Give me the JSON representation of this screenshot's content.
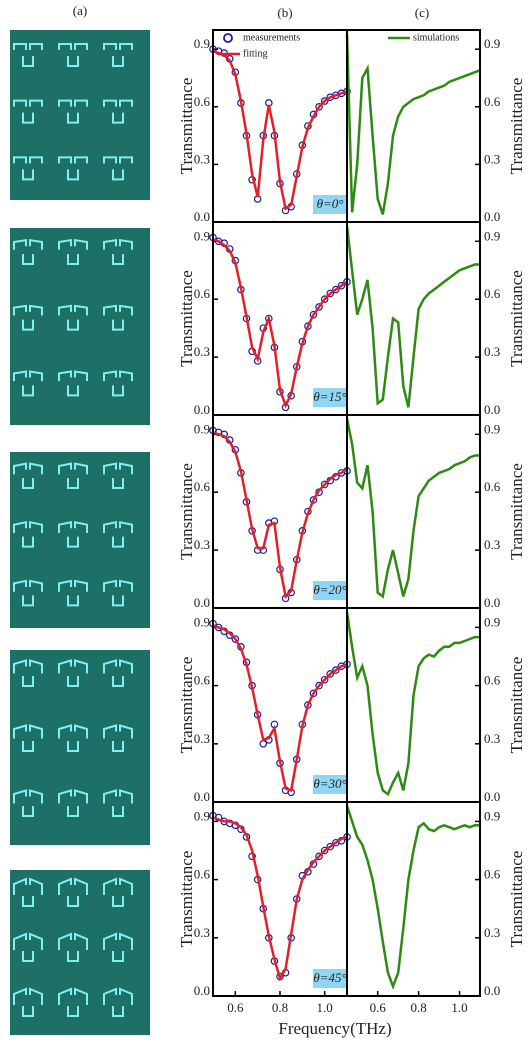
{
  "panel_labels": [
    "(a)",
    "(b)",
    "(c)"
  ],
  "xlabel": "Frequency(THz)",
  "chart_data": [
    {
      "type": "line",
      "ylabel": "Transmittance",
      "annotation": "θ=0°",
      "x": [
        0.5,
        0.525,
        0.55,
        0.575,
        0.6,
        0.625,
        0.65,
        0.675,
        0.7,
        0.725,
        0.75,
        0.775,
        0.8,
        0.825,
        0.85,
        0.875,
        0.9,
        0.925,
        0.95,
        0.975,
        1.0,
        1.025,
        1.05,
        1.075,
        1.1
      ],
      "xlim": [
        0.5,
        1.1
      ],
      "ylim": [
        0,
        1
      ],
      "yticks": [
        {
          "value": 0,
          "label": "0.0"
        },
        0.3,
        0.6,
        0.9
      ],
      "series": [
        {
          "name": "measurements",
          "color": "#1c1c9c",
          "marker": "circle",
          "values": [
            0.9,
            0.89,
            0.88,
            0.85,
            0.78,
            0.62,
            0.45,
            0.22,
            0.12,
            0.45,
            0.62,
            0.45,
            0.2,
            0.06,
            0.08,
            0.25,
            0.4,
            0.5,
            0.56,
            0.6,
            0.63,
            0.65,
            0.66,
            0.67,
            0.68
          ]
        },
        {
          "name": "fitting",
          "color": "#e3202a",
          "values": [
            0.89,
            0.88,
            0.87,
            0.84,
            0.77,
            0.63,
            0.46,
            0.25,
            0.13,
            0.43,
            0.61,
            0.47,
            0.21,
            0.07,
            0.09,
            0.24,
            0.39,
            0.49,
            0.55,
            0.6,
            0.63,
            0.65,
            0.66,
            0.67,
            0.68
          ]
        }
      ]
    },
    {
      "type": "line",
      "ylabel": "Transmittance",
      "x": [
        0.45,
        0.475,
        0.5,
        0.525,
        0.55,
        0.575,
        0.6,
        0.625,
        0.65,
        0.675,
        0.7,
        0.725,
        0.75,
        0.775,
        0.8,
        0.825,
        0.85,
        0.875,
        0.9,
        0.925,
        0.95,
        0.975,
        1.0,
        1.025,
        1.05,
        1.075,
        1.1
      ],
      "xlim": [
        0.45,
        1.1
      ],
      "ylim": [
        0,
        1
      ],
      "yticks": [
        {
          "value": 0,
          "label": "0.0"
        },
        0.3,
        0.6,
        0.9
      ],
      "series": [
        {
          "name": "simulations",
          "color": "#2e8a12",
          "values": [
            0.98,
            0.05,
            0.3,
            0.75,
            0.8,
            0.45,
            0.12,
            0.04,
            0.2,
            0.45,
            0.55,
            0.6,
            0.62,
            0.64,
            0.65,
            0.66,
            0.68,
            0.69,
            0.7,
            0.71,
            0.73,
            0.74,
            0.75,
            0.76,
            0.77,
            0.78,
            0.79
          ]
        }
      ]
    },
    {
      "type": "line",
      "ylabel": "Transmittance",
      "annotation": "θ=15°",
      "x": [
        0.5,
        0.525,
        0.55,
        0.575,
        0.6,
        0.625,
        0.65,
        0.675,
        0.7,
        0.725,
        0.75,
        0.775,
        0.8,
        0.825,
        0.85,
        0.875,
        0.9,
        0.925,
        0.95,
        0.975,
        1.0,
        1.025,
        1.05,
        1.075,
        1.1
      ],
      "xlim": [
        0.5,
        1.1
      ],
      "ylim": [
        0,
        1
      ],
      "yticks": [
        {
          "value": 0,
          "label": "0.0"
        },
        0.3,
        0.6,
        0.9
      ],
      "series": [
        {
          "color": "#1c1c9c",
          "marker": "circle",
          "values": [
            0.92,
            0.9,
            0.89,
            0.86,
            0.8,
            0.65,
            0.5,
            0.33,
            0.28,
            0.45,
            0.5,
            0.35,
            0.12,
            0.04,
            0.1,
            0.25,
            0.38,
            0.46,
            0.52,
            0.56,
            0.6,
            0.63,
            0.65,
            0.67,
            0.69
          ]
        },
        {
          "color": "#e3202a",
          "values": [
            0.91,
            0.9,
            0.88,
            0.85,
            0.79,
            0.66,
            0.51,
            0.35,
            0.29,
            0.43,
            0.5,
            0.36,
            0.13,
            0.05,
            0.11,
            0.25,
            0.37,
            0.46,
            0.52,
            0.56,
            0.6,
            0.63,
            0.65,
            0.67,
            0.69
          ]
        }
      ]
    },
    {
      "type": "line",
      "ylabel": "Transmittance",
      "x": [
        0.45,
        0.475,
        0.5,
        0.525,
        0.55,
        0.575,
        0.6,
        0.625,
        0.65,
        0.675,
        0.7,
        0.725,
        0.75,
        0.775,
        0.8,
        0.825,
        0.85,
        0.875,
        0.9,
        0.925,
        0.95,
        0.975,
        1.0,
        1.025,
        1.05,
        1.075,
        1.1
      ],
      "xlim": [
        0.45,
        1.1
      ],
      "ylim": [
        0,
        1
      ],
      "yticks": [
        {
          "value": 0,
          "label": "0.0"
        },
        0.3,
        0.6,
        0.9
      ],
      "series": [
        {
          "color": "#2e8a12",
          "values": [
            0.98,
            0.75,
            0.52,
            0.6,
            0.7,
            0.45,
            0.06,
            0.08,
            0.3,
            0.5,
            0.48,
            0.15,
            0.04,
            0.3,
            0.55,
            0.6,
            0.63,
            0.65,
            0.67,
            0.69,
            0.71,
            0.73,
            0.75,
            0.76,
            0.77,
            0.78,
            0.78
          ]
        }
      ]
    },
    {
      "type": "line",
      "ylabel": "Transmittance",
      "annotation": "θ=20°",
      "x": [
        0.5,
        0.525,
        0.55,
        0.575,
        0.6,
        0.625,
        0.65,
        0.675,
        0.7,
        0.725,
        0.75,
        0.775,
        0.8,
        0.825,
        0.85,
        0.875,
        0.9,
        0.925,
        0.95,
        0.975,
        1.0,
        1.025,
        1.05,
        1.075,
        1.1
      ],
      "xlim": [
        0.5,
        1.1
      ],
      "ylim": [
        0,
        1
      ],
      "yticks": [
        {
          "value": 0,
          "label": "0.0"
        },
        0.3,
        0.6,
        0.9
      ],
      "series": [
        {
          "color": "#1c1c9c",
          "marker": "circle",
          "values": [
            0.92,
            0.91,
            0.9,
            0.87,
            0.82,
            0.7,
            0.55,
            0.4,
            0.3,
            0.3,
            0.44,
            0.45,
            0.2,
            0.05,
            0.08,
            0.25,
            0.4,
            0.5,
            0.56,
            0.6,
            0.64,
            0.66,
            0.68,
            0.7,
            0.71
          ]
        },
        {
          "color": "#e3202a",
          "values": [
            0.91,
            0.9,
            0.89,
            0.86,
            0.81,
            0.71,
            0.56,
            0.41,
            0.31,
            0.31,
            0.43,
            0.44,
            0.21,
            0.06,
            0.09,
            0.25,
            0.39,
            0.49,
            0.56,
            0.61,
            0.64,
            0.67,
            0.69,
            0.7,
            0.72
          ]
        }
      ]
    },
    {
      "type": "line",
      "ylabel": "Transmittance",
      "x": [
        0.45,
        0.475,
        0.5,
        0.525,
        0.55,
        0.575,
        0.6,
        0.625,
        0.65,
        0.675,
        0.7,
        0.725,
        0.75,
        0.775,
        0.8,
        0.825,
        0.85,
        0.875,
        0.9,
        0.925,
        0.95,
        0.975,
        1.0,
        1.025,
        1.05,
        1.075,
        1.1
      ],
      "xlim": [
        0.45,
        1.1
      ],
      "ylim": [
        0,
        1
      ],
      "yticks": [
        {
          "value": 0,
          "label": "0.0"
        },
        0.3,
        0.6,
        0.9
      ],
      "series": [
        {
          "color": "#2e8a12",
          "values": [
            0.98,
            0.85,
            0.65,
            0.62,
            0.74,
            0.5,
            0.08,
            0.06,
            0.2,
            0.3,
            0.18,
            0.06,
            0.15,
            0.4,
            0.58,
            0.62,
            0.66,
            0.68,
            0.7,
            0.71,
            0.72,
            0.74,
            0.75,
            0.76,
            0.78,
            0.79,
            0.79
          ]
        }
      ]
    },
    {
      "type": "line",
      "ylabel": "Transmittance",
      "annotation": "θ=30°",
      "x": [
        0.5,
        0.525,
        0.55,
        0.575,
        0.6,
        0.625,
        0.65,
        0.675,
        0.7,
        0.725,
        0.75,
        0.775,
        0.8,
        0.825,
        0.85,
        0.875,
        0.9,
        0.925,
        0.95,
        0.975,
        1.0,
        1.025,
        1.05,
        1.075,
        1.1
      ],
      "xlim": [
        0.5,
        1.1
      ],
      "ylim": [
        0,
        1
      ],
      "yticks": [
        {
          "value": 0,
          "label": "0.0"
        },
        0.3,
        0.6,
        0.9
      ],
      "series": [
        {
          "color": "#1c1c9c",
          "marker": "circle",
          "values": [
            0.92,
            0.9,
            0.88,
            0.86,
            0.84,
            0.8,
            0.72,
            0.6,
            0.45,
            0.3,
            0.32,
            0.4,
            0.2,
            0.06,
            0.05,
            0.22,
            0.4,
            0.5,
            0.56,
            0.6,
            0.63,
            0.66,
            0.68,
            0.7,
            0.71
          ]
        },
        {
          "color": "#e3202a",
          "values": [
            0.91,
            0.9,
            0.89,
            0.87,
            0.84,
            0.79,
            0.71,
            0.59,
            0.45,
            0.32,
            0.33,
            0.38,
            0.21,
            0.07,
            0.06,
            0.22,
            0.39,
            0.5,
            0.56,
            0.6,
            0.63,
            0.66,
            0.68,
            0.7,
            0.71
          ]
        }
      ]
    },
    {
      "type": "line",
      "ylabel": "Transmittance",
      "x": [
        0.45,
        0.475,
        0.5,
        0.525,
        0.55,
        0.575,
        0.6,
        0.625,
        0.65,
        0.675,
        0.7,
        0.725,
        0.75,
        0.775,
        0.8,
        0.825,
        0.85,
        0.875,
        0.9,
        0.925,
        0.95,
        0.975,
        1.0,
        1.025,
        1.05,
        1.075,
        1.1
      ],
      "xlim": [
        0.45,
        1.1
      ],
      "ylim": [
        0,
        1
      ],
      "yticks": [
        {
          "value": 0,
          "label": "0.0"
        },
        0.3,
        0.6,
        0.9
      ],
      "series": [
        {
          "color": "#2e8a12",
          "values": [
            0.98,
            0.8,
            0.64,
            0.7,
            0.6,
            0.35,
            0.15,
            0.06,
            0.04,
            0.1,
            0.15,
            0.06,
            0.2,
            0.55,
            0.7,
            0.74,
            0.76,
            0.75,
            0.78,
            0.8,
            0.8,
            0.82,
            0.82,
            0.83,
            0.84,
            0.85,
            0.85
          ]
        }
      ]
    },
    {
      "type": "line",
      "ylabel": "Transmittance",
      "annotation": "θ=45°",
      "x": [
        0.5,
        0.525,
        0.55,
        0.575,
        0.6,
        0.625,
        0.65,
        0.675,
        0.7,
        0.725,
        0.75,
        0.775,
        0.8,
        0.825,
        0.85,
        0.875,
        0.9,
        0.925,
        0.95,
        0.975,
        1.0,
        1.025,
        1.05,
        1.075,
        1.1
      ],
      "xlim": [
        0.5,
        1.1
      ],
      "ylim": [
        0,
        1
      ],
      "yticks": [
        {
          "value": 0,
          "label": "0.0"
        },
        0.3,
        0.6,
        0.9
      ],
      "xticks": [
        0.6,
        0.8,
        {
          "value": 1,
          "label": "1.0"
        }
      ],
      "series": [
        {
          "color": "#1c1c9c",
          "marker": "circle",
          "values": [
            0.93,
            0.92,
            0.9,
            0.89,
            0.88,
            0.86,
            0.82,
            0.72,
            0.6,
            0.45,
            0.3,
            0.18,
            0.1,
            0.12,
            0.3,
            0.5,
            0.62,
            0.64,
            0.68,
            0.72,
            0.75,
            0.77,
            0.79,
            0.8,
            0.82
          ]
        },
        {
          "color": "#e3202a",
          "values": [
            0.92,
            0.91,
            0.9,
            0.9,
            0.89,
            0.87,
            0.83,
            0.75,
            0.62,
            0.46,
            0.31,
            0.19,
            0.09,
            0.14,
            0.32,
            0.5,
            0.6,
            0.65,
            0.69,
            0.72,
            0.75,
            0.77,
            0.79,
            0.81,
            0.82
          ]
        }
      ]
    },
    {
      "type": "line",
      "ylabel": "Transmittance",
      "x": [
        0.45,
        0.475,
        0.5,
        0.525,
        0.55,
        0.575,
        0.6,
        0.625,
        0.65,
        0.675,
        0.7,
        0.725,
        0.75,
        0.775,
        0.8,
        0.825,
        0.85,
        0.875,
        0.9,
        0.925,
        0.95,
        0.975,
        1.0,
        1.025,
        1.05,
        1.075,
        1.1
      ],
      "xlim": [
        0.45,
        1.1
      ],
      "ylim": [
        0,
        1
      ],
      "yticks": [
        {
          "value": 0,
          "label": "0.0"
        },
        0.3,
        0.6,
        0.9
      ],
      "xticks": [
        0.6,
        0.8,
        {
          "value": 1,
          "label": "1.0"
        }
      ],
      "series": [
        {
          "color": "#2e8a12",
          "values": [
            0.98,
            0.9,
            0.82,
            0.78,
            0.7,
            0.6,
            0.45,
            0.28,
            0.12,
            0.05,
            0.12,
            0.35,
            0.6,
            0.75,
            0.87,
            0.89,
            0.86,
            0.85,
            0.87,
            0.88,
            0.87,
            0.86,
            0.87,
            0.88,
            0.87,
            0.88,
            0.88
          ]
        }
      ]
    }
  ]
}
